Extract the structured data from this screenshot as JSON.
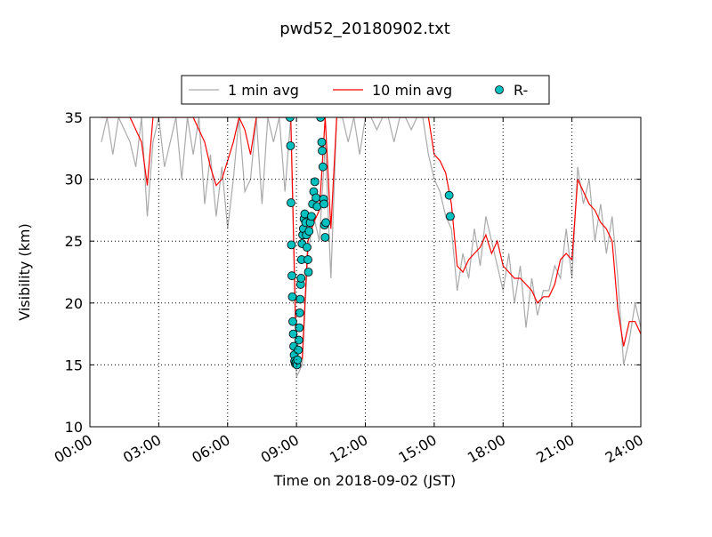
{
  "chart_data": {
    "type": "line",
    "title": "pwd52_20180902.txt",
    "x_label": "Time on 2018-09-02 (JST)",
    "y_label": "Visibility (km)",
    "xlim": [
      0,
      24
    ],
    "xticks": [
      {
        "value": 0,
        "label": "00:00"
      },
      {
        "value": 3,
        "label": "03:00"
      },
      {
        "value": 6,
        "label": "06:00"
      },
      {
        "value": 9,
        "label": "09:00"
      },
      {
        "value": 12,
        "label": "12:00"
      },
      {
        "value": 15,
        "label": "15:00"
      },
      {
        "value": 18,
        "label": "18:00"
      },
      {
        "value": 21,
        "label": "21:00"
      },
      {
        "value": 24,
        "label": "24:00"
      }
    ],
    "ylim": [
      10,
      35
    ],
    "yticks": [
      10,
      15,
      20,
      25,
      30,
      35
    ],
    "grid": true,
    "legend": "top",
    "x": [
      0.5,
      0.75,
      1,
      1.25,
      1.5,
      1.75,
      2,
      2.25,
      2.5,
      2.75,
      3,
      3.25,
      3.5,
      3.75,
      4,
      4.25,
      4.5,
      4.75,
      5,
      5.25,
      5.5,
      5.75,
      6,
      6.25,
      6.5,
      6.75,
      7,
      7.25,
      7.5,
      7.75,
      8,
      8.25,
      8.5,
      8.75,
      9,
      9.25,
      9.5,
      9.75,
      10,
      10.25,
      10.5,
      10.75,
      11,
      11.25,
      11.5,
      11.75,
      12,
      12.25,
      12.5,
      12.75,
      13,
      13.25,
      13.5,
      13.75,
      14,
      14.25,
      14.5,
      14.75,
      15,
      15.25,
      15.5,
      15.75,
      16,
      16.25,
      16.5,
      16.75,
      17,
      17.25,
      17.5,
      17.75,
      18,
      18.25,
      18.5,
      18.75,
      19,
      19.25,
      19.5,
      19.75,
      20,
      20.25,
      20.5,
      20.75,
      21,
      21.25,
      21.5,
      21.75,
      22,
      22.25,
      22.5,
      22.75,
      23,
      23.25,
      23.5,
      23.75,
      24
    ],
    "series": [
      {
        "name": "1 min avg",
        "color": "#aaaaaa",
        "style": "line",
        "values": [
          33,
          35,
          32,
          35,
          34,
          33,
          31,
          35,
          27,
          33,
          35,
          31,
          33,
          35,
          30,
          35,
          32,
          35,
          28,
          32,
          27,
          31,
          26,
          30,
          35,
          29,
          30,
          35,
          28,
          35,
          33,
          35,
          29,
          35,
          14,
          15,
          24,
          27,
          25,
          33,
          22,
          35,
          35,
          33,
          35,
          32,
          35,
          35,
          34,
          35,
          35,
          33,
          35,
          35,
          34,
          35,
          35,
          32,
          30,
          29,
          27,
          26,
          21,
          24,
          22,
          26,
          23,
          27,
          25,
          23,
          21,
          24,
          20,
          23,
          18,
          22,
          19,
          21,
          21,
          23,
          22,
          26,
          22,
          31,
          28,
          30,
          25,
          28,
          24,
          27,
          22,
          15,
          17,
          20,
          18
        ]
      },
      {
        "name": "10 min avg",
        "color": "#ff0000",
        "style": "line",
        "values": [
          35,
          35,
          35,
          35,
          35,
          35,
          34,
          33,
          29.5,
          35,
          35,
          35,
          35,
          35,
          35,
          35,
          35,
          34,
          33,
          31,
          29.5,
          30,
          31.5,
          33,
          35,
          34,
          32,
          35,
          35,
          35,
          35,
          35,
          35,
          35,
          15.5,
          15.5,
          25,
          26.5,
          27.5,
          35,
          26,
          35,
          35,
          35,
          35,
          35,
          35,
          35,
          35,
          35,
          35,
          35,
          35,
          35,
          35,
          35,
          35,
          35,
          32,
          31.5,
          30.5,
          28,
          23,
          22.5,
          23.5,
          24,
          24.5,
          25.5,
          24,
          25,
          23,
          22.5,
          22,
          22,
          21.5,
          21,
          20,
          20.5,
          20.5,
          21.5,
          23.5,
          24,
          23.5,
          30,
          29,
          28,
          27.5,
          26.5,
          26,
          25,
          19.5,
          16.5,
          18.5,
          18.5,
          17.5
        ]
      },
      {
        "name": "R-",
        "color": "#00c0c0",
        "style": "marker",
        "x": [
          8.72,
          8.74,
          8.76,
          8.78,
          8.8,
          8.82,
          8.84,
          8.86,
          8.88,
          8.9,
          8.92,
          8.95,
          8.98,
          9.02,
          9.05,
          9.08,
          9.1,
          9.12,
          9.14,
          9.16,
          9.18,
          9.2,
          9.22,
          9.24,
          9.27,
          9.3,
          9.33,
          9.36,
          9.4,
          9.43,
          9.46,
          9.5,
          9.52,
          9.55,
          9.6,
          9.65,
          9.7,
          9.75,
          9.8,
          9.85,
          9.9,
          10.05,
          10.1,
          10.12,
          10.15,
          10.18,
          10.2,
          10.22,
          10.25,
          10.28,
          15.65,
          15.7
        ],
        "values": [
          35,
          32.7,
          28.1,
          24.7,
          22.2,
          20.5,
          18.5,
          17.5,
          16.5,
          15.8,
          15.3,
          15.1,
          15.2,
          15,
          15.4,
          16.2,
          17,
          18,
          19.2,
          20.3,
          21.5,
          22,
          23.5,
          24.8,
          25.5,
          26,
          26.8,
          27.2,
          26.5,
          25.5,
          24.5,
          23.5,
          22.5,
          25.8,
          26.5,
          27,
          28,
          29,
          29.8,
          28.5,
          27.8,
          35,
          33,
          32.3,
          31,
          28.4,
          28,
          26.3,
          25.3,
          26.5,
          28.7,
          27
        ]
      }
    ]
  }
}
